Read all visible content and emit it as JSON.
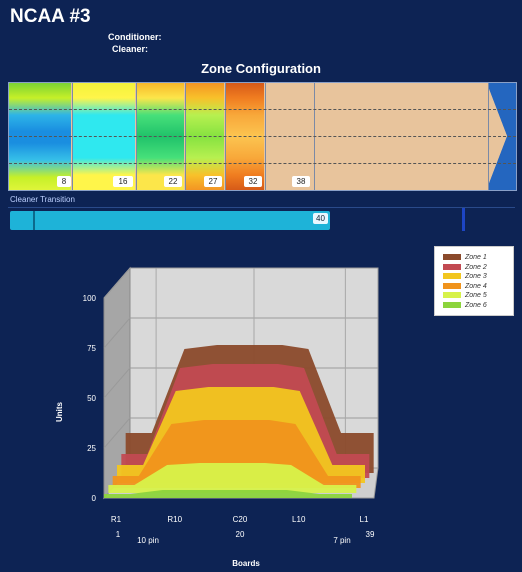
{
  "header": {
    "title": "NCAA #3",
    "conditioner_label": "Conditioner:",
    "cleaner_label": "Cleaner:"
  },
  "zone_config": {
    "title": "Zone Configuration",
    "markers": [
      "8",
      "16",
      "22",
      "27",
      "32",
      "38"
    ]
  },
  "cleaner_transition": {
    "label": "Cleaner Transition",
    "value": "40"
  },
  "chart_data": {
    "type": "area",
    "title": "",
    "xlabel": "Boards",
    "ylabel": "Units",
    "ylim": [
      0,
      100
    ],
    "yticks": [
      0,
      25,
      50,
      75,
      100
    ],
    "x_tick_labels": [
      "R1",
      "R10",
      "C20",
      "L10",
      "L1"
    ],
    "x_sub_labels": [
      "1",
      "10 pin",
      "20",
      "7 pin",
      "39"
    ],
    "x": [
      1,
      5,
      10,
      15,
      20,
      25,
      29,
      34,
      39
    ],
    "series": [
      {
        "name": "Zone 1",
        "color": "#8b4a2b",
        "values": [
          20,
          20,
          62,
          64,
          64,
          64,
          62,
          20,
          20
        ]
      },
      {
        "name": "Zone 2",
        "color": "#c24a52",
        "values": [
          12,
          12,
          55,
          57,
          57,
          57,
          55,
          12,
          12
        ]
      },
      {
        "name": "Zone 3",
        "color": "#f2c61f",
        "values": [
          9,
          9,
          46,
          48,
          48,
          48,
          46,
          9,
          9
        ]
      },
      {
        "name": "Zone 4",
        "color": "#f0931c",
        "values": [
          6,
          6,
          32,
          34,
          34,
          34,
          32,
          6,
          6
        ]
      },
      {
        "name": "Zone 5",
        "color": "#d7f24a",
        "values": [
          4,
          4,
          14,
          15,
          15,
          15,
          14,
          4,
          4
        ]
      },
      {
        "name": "Zone 6",
        "color": "#8cd43c",
        "values": [
          2,
          2,
          4,
          4,
          4,
          4,
          4,
          2,
          2
        ]
      }
    ],
    "legend_position": "top-right"
  }
}
